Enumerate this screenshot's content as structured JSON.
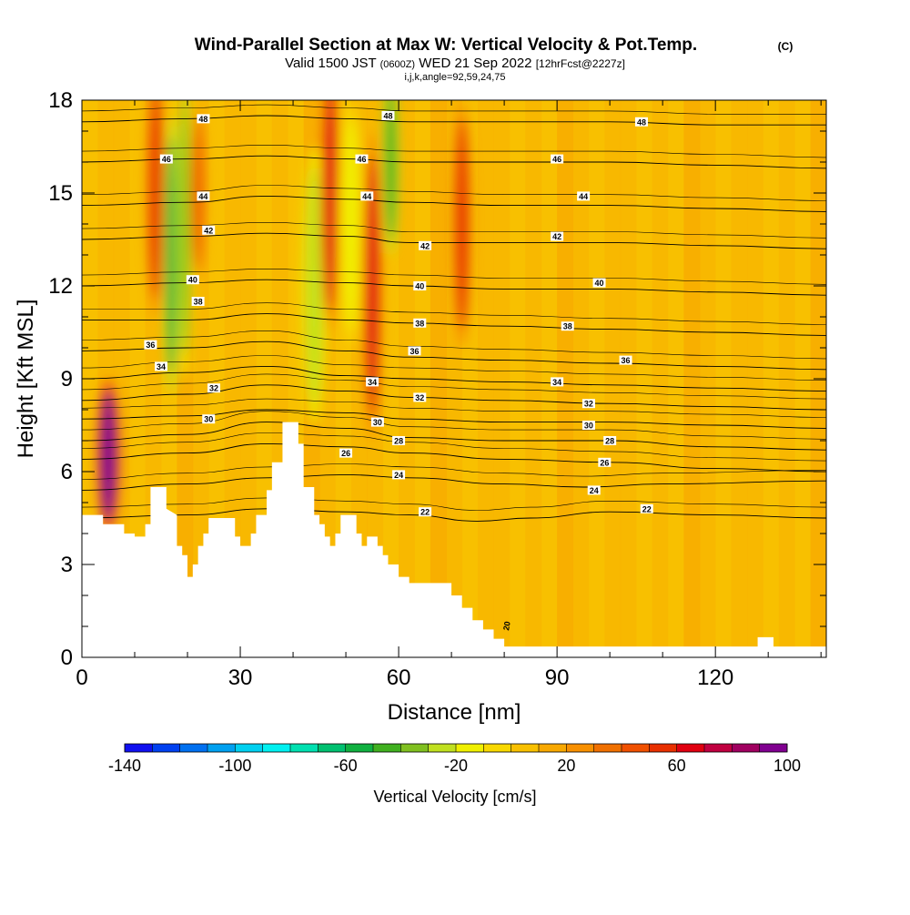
{
  "chart_data": {
    "type": "heatmap",
    "title": "Wind-Parallel Section at Max W: Vertical Velocity & Pot.Temp.",
    "title_mark": "(C)",
    "subtitle_main": "Valid 1500 JST",
    "subtitle_utc": "(0600Z)",
    "subtitle_date": "WED 21 Sep 2022",
    "subtitle_fcst": "[12hrFcst@2227z]",
    "subtitle_ijk": "i,j,k,angle=92,59,24,75",
    "xlabel": "Distance [nm]",
    "ylabel": "Height [Kft MSL]",
    "xlim": [
      0,
      141
    ],
    "ylim": [
      0,
      18
    ],
    "x_ticks": [
      0,
      30,
      60,
      90,
      120
    ],
    "y_ticks": [
      0,
      3,
      6,
      9,
      12,
      15,
      18
    ],
    "colorbar": {
      "label": "Vertical Velocity [cm/s]",
      "min": -140,
      "max": 100,
      "step": 10,
      "tick_labels": [
        -140,
        -100,
        -60,
        -20,
        20,
        60,
        100
      ],
      "colors": [
        "#1010f0",
        "#0040f0",
        "#0070f0",
        "#00a0f0",
        "#00d0f0",
        "#00f0f0",
        "#00e0b0",
        "#00c070",
        "#10b040",
        "#40b020",
        "#80c020",
        "#c0e020",
        "#f0f000",
        "#f8d800",
        "#f8c000",
        "#f8a800",
        "#f89000",
        "#f07000",
        "#f05000",
        "#e83000",
        "#e00010",
        "#c00040",
        "#a00060",
        "#800090"
      ]
    },
    "theta_contours": [
      {
        "value": 22,
        "label": "22",
        "points": [
          [
            0,
            4.5
          ],
          [
            20,
            4.6
          ],
          [
            35,
            4.8
          ],
          [
            50,
            4.7
          ],
          [
            62,
            4.6
          ],
          [
            75,
            4.4
          ],
          [
            85,
            4.5
          ],
          [
            100,
            4.7
          ],
          [
            120,
            4.6
          ],
          [
            141,
            4.5
          ]
        ],
        "labels_at": [
          [
            65,
            4.7
          ],
          [
            107,
            4.8
          ]
        ]
      },
      {
        "value": 24,
        "label": "24",
        "points": [
          [
            0,
            5.4
          ],
          [
            20,
            5.6
          ],
          [
            35,
            5.8
          ],
          [
            50,
            5.9
          ],
          [
            62,
            5.8
          ],
          [
            80,
            5.6
          ],
          [
            95,
            5.5
          ],
          [
            110,
            5.6
          ],
          [
            141,
            5.7
          ]
        ],
        "labels_at": [
          [
            60,
            5.9
          ],
          [
            97,
            5.4
          ]
        ]
      },
      {
        "value": 26,
        "label": "26",
        "points": [
          [
            0,
            6.4
          ],
          [
            20,
            6.6
          ],
          [
            35,
            6.9
          ],
          [
            50,
            6.8
          ],
          [
            62,
            6.6
          ],
          [
            80,
            6.4
          ],
          [
            100,
            6.3
          ],
          [
            120,
            6.1
          ],
          [
            141,
            6.0
          ]
        ],
        "labels_at": [
          [
            50,
            6.6
          ],
          [
            99,
            6.3
          ]
        ]
      },
      {
        "value": 28,
        "label": "28",
        "points": [
          [
            0,
            7.0
          ],
          [
            20,
            7.2
          ],
          [
            35,
            7.6
          ],
          [
            50,
            7.4
          ],
          [
            62,
            7.1
          ],
          [
            80,
            7.0
          ],
          [
            100,
            7.0
          ],
          [
            120,
            6.8
          ],
          [
            141,
            6.7
          ]
        ],
        "labels_at": [
          [
            60,
            7.0
          ],
          [
            100,
            7.0
          ]
        ]
      },
      {
        "value": 30,
        "label": "30",
        "points": [
          [
            0,
            7.7
          ],
          [
            20,
            7.8
          ],
          [
            35,
            8.0
          ],
          [
            50,
            7.9
          ],
          [
            62,
            7.7
          ],
          [
            80,
            7.6
          ],
          [
            100,
            7.6
          ],
          [
            120,
            7.5
          ],
          [
            141,
            7.4
          ]
        ],
        "labels_at": [
          [
            24,
            7.7
          ],
          [
            56,
            7.6
          ],
          [
            96,
            7.5
          ]
        ]
      },
      {
        "value": 32,
        "label": "32",
        "points": [
          [
            0,
            8.3
          ],
          [
            20,
            8.5
          ],
          [
            35,
            8.8
          ],
          [
            50,
            8.6
          ],
          [
            62,
            8.4
          ],
          [
            80,
            8.3
          ],
          [
            100,
            8.2
          ],
          [
            120,
            8.1
          ],
          [
            141,
            8.0
          ]
        ],
        "labels_at": [
          [
            25,
            8.7
          ],
          [
            64,
            8.4
          ],
          [
            96,
            8.2
          ]
        ]
      },
      {
        "value": 34,
        "label": "34",
        "points": [
          [
            0,
            9.0
          ],
          [
            20,
            9.2
          ],
          [
            35,
            9.4
          ],
          [
            50,
            9.1
          ],
          [
            62,
            9.0
          ],
          [
            80,
            8.9
          ],
          [
            100,
            8.8
          ],
          [
            120,
            8.7
          ],
          [
            141,
            8.6
          ]
        ],
        "labels_at": [
          [
            15,
            9.4
          ],
          [
            55,
            8.9
          ],
          [
            90,
            8.9
          ]
        ]
      },
      {
        "value": 36,
        "label": "36",
        "points": [
          [
            0,
            9.9
          ],
          [
            20,
            10.0
          ],
          [
            35,
            10.2
          ],
          [
            50,
            9.9
          ],
          [
            62,
            9.7
          ],
          [
            80,
            9.6
          ],
          [
            100,
            9.5
          ],
          [
            120,
            9.4
          ],
          [
            141,
            9.3
          ]
        ],
        "labels_at": [
          [
            13,
            10.1
          ],
          [
            63,
            9.9
          ],
          [
            103,
            9.6
          ]
        ]
      },
      {
        "value": 38,
        "label": "38",
        "points": [
          [
            0,
            10.9
          ],
          [
            20,
            10.9
          ],
          [
            35,
            11.1
          ],
          [
            50,
            10.9
          ],
          [
            62,
            10.8
          ],
          [
            80,
            10.7
          ],
          [
            100,
            10.6
          ],
          [
            120,
            10.5
          ],
          [
            141,
            10.4
          ]
        ],
        "labels_at": [
          [
            22,
            11.5
          ],
          [
            64,
            10.8
          ],
          [
            92,
            10.7
          ]
        ]
      },
      {
        "value": 40,
        "label": "40",
        "points": [
          [
            0,
            12.0
          ],
          [
            20,
            12.1
          ],
          [
            35,
            12.2
          ],
          [
            50,
            12.1
          ],
          [
            62,
            12.0
          ],
          [
            80,
            11.9
          ],
          [
            100,
            11.9
          ],
          [
            120,
            11.8
          ],
          [
            141,
            11.7
          ]
        ],
        "labels_at": [
          [
            21,
            12.2
          ],
          [
            64,
            12.0
          ],
          [
            98,
            12.1
          ]
        ]
      },
      {
        "value": 42,
        "label": "42",
        "points": [
          [
            0,
            13.5
          ],
          [
            20,
            13.6
          ],
          [
            35,
            13.7
          ],
          [
            50,
            13.6
          ],
          [
            62,
            13.4
          ],
          [
            80,
            13.4
          ],
          [
            100,
            13.4
          ],
          [
            120,
            13.3
          ],
          [
            141,
            13.2
          ]
        ],
        "labels_at": [
          [
            24,
            13.8
          ],
          [
            65,
            13.3
          ],
          [
            90,
            13.6
          ]
        ]
      },
      {
        "value": 44,
        "label": "44",
        "points": [
          [
            0,
            14.6
          ],
          [
            20,
            14.7
          ],
          [
            35,
            14.9
          ],
          [
            50,
            14.8
          ],
          [
            62,
            14.7
          ],
          [
            80,
            14.6
          ],
          [
            100,
            14.6
          ],
          [
            120,
            14.5
          ],
          [
            141,
            14.4
          ]
        ],
        "labels_at": [
          [
            23,
            14.9
          ],
          [
            54,
            14.9
          ],
          [
            95,
            14.9
          ]
        ]
      },
      {
        "value": 46,
        "label": "46",
        "points": [
          [
            0,
            16.0
          ],
          [
            20,
            16.1
          ],
          [
            35,
            16.2
          ],
          [
            50,
            16.1
          ],
          [
            62,
            16.0
          ],
          [
            80,
            16.0
          ],
          [
            100,
            16.0
          ],
          [
            120,
            15.9
          ],
          [
            141,
            15.8
          ]
        ],
        "labels_at": [
          [
            16,
            16.1
          ],
          [
            53,
            16.1
          ],
          [
            90,
            16.1
          ]
        ]
      },
      {
        "value": 48,
        "label": "48",
        "points": [
          [
            0,
            17.3
          ],
          [
            20,
            17.4
          ],
          [
            35,
            17.5
          ],
          [
            50,
            17.4
          ],
          [
            62,
            17.3
          ],
          [
            80,
            17.3
          ],
          [
            100,
            17.3
          ],
          [
            120,
            17.2
          ],
          [
            141,
            17.2
          ]
        ],
        "labels_at": [
          [
            23,
            17.4
          ],
          [
            58,
            17.5
          ],
          [
            106,
            17.3
          ]
        ]
      }
    ],
    "terrain": [
      [
        0,
        4.6
      ],
      [
        4,
        4.6
      ],
      [
        4,
        4.3
      ],
      [
        8,
        4.3
      ],
      [
        8,
        4.0
      ],
      [
        10,
        4.0
      ],
      [
        10,
        3.9
      ],
      [
        12,
        3.9
      ],
      [
        12,
        4.3
      ],
      [
        13,
        4.3
      ],
      [
        13,
        5.5
      ],
      [
        16,
        5.5
      ],
      [
        16,
        4.8
      ],
      [
        18,
        4.6
      ],
      [
        18,
        3.6
      ],
      [
        19,
        3.6
      ],
      [
        19,
        3.3
      ],
      [
        20,
        3.3
      ],
      [
        20,
        2.6
      ],
      [
        21,
        2.6
      ],
      [
        21,
        3.0
      ],
      [
        22,
        3.0
      ],
      [
        22,
        3.6
      ],
      [
        23,
        3.6
      ],
      [
        23,
        4.0
      ],
      [
        24,
        4.0
      ],
      [
        24,
        4.5
      ],
      [
        29,
        4.5
      ],
      [
        29,
        3.9
      ],
      [
        30,
        3.9
      ],
      [
        30,
        3.6
      ],
      [
        32,
        3.6
      ],
      [
        32,
        4.0
      ],
      [
        33,
        4.0
      ],
      [
        33,
        4.6
      ],
      [
        35,
        4.6
      ],
      [
        35,
        5.4
      ],
      [
        36,
        5.4
      ],
      [
        36,
        6.3
      ],
      [
        38,
        6.3
      ],
      [
        38,
        7.6
      ],
      [
        41,
        7.6
      ],
      [
        41,
        6.9
      ],
      [
        42,
        6.9
      ],
      [
        42,
        5.5
      ],
      [
        44,
        5.5
      ],
      [
        44,
        4.6
      ],
      [
        45,
        4.6
      ],
      [
        45,
        4.3
      ],
      [
        46,
        4.3
      ],
      [
        46,
        3.9
      ],
      [
        47,
        3.9
      ],
      [
        47,
        3.6
      ],
      [
        48,
        3.6
      ],
      [
        48,
        4.0
      ],
      [
        49,
        4.0
      ],
      [
        49,
        4.6
      ],
      [
        52,
        4.6
      ],
      [
        52,
        4.0
      ],
      [
        53,
        4.0
      ],
      [
        53,
        3.6
      ],
      [
        54,
        3.6
      ],
      [
        54,
        3.9
      ],
      [
        56,
        3.9
      ],
      [
        56,
        3.6
      ],
      [
        57,
        3.6
      ],
      [
        57,
        3.3
      ],
      [
        58,
        3.3
      ],
      [
        58,
        3.0
      ],
      [
        60,
        3.0
      ],
      [
        60,
        2.6
      ],
      [
        62,
        2.6
      ],
      [
        62,
        2.4
      ],
      [
        70,
        2.4
      ],
      [
        70,
        2.0
      ],
      [
        72,
        2.0
      ],
      [
        72,
        1.6
      ],
      [
        74,
        1.6
      ],
      [
        74,
        1.2
      ],
      [
        76,
        1.2
      ],
      [
        76,
        0.9
      ],
      [
        78,
        0.9
      ],
      [
        78,
        0.6
      ],
      [
        80,
        0.6
      ],
      [
        80,
        0.35
      ],
      [
        128,
        0.35
      ],
      [
        128,
        0.65
      ],
      [
        131,
        0.65
      ],
      [
        131,
        0.35
      ],
      [
        141,
        0.35
      ]
    ],
    "velocity_features": [
      {
        "x": 5,
        "y": 6.5,
        "value": 95,
        "width": 3,
        "height": 5
      },
      {
        "x": 14,
        "y": 15,
        "value": 50,
        "width": 2.5,
        "height": 8
      },
      {
        "x": 17,
        "y": 13,
        "value": -60,
        "width": 2,
        "height": 9
      },
      {
        "x": 19.5,
        "y": 14,
        "value": -40,
        "width": 2,
        "height": 10
      },
      {
        "x": 22,
        "y": 15,
        "value": 40,
        "width": 2,
        "height": 6
      },
      {
        "x": 44,
        "y": 12,
        "value": -30,
        "width": 3,
        "height": 9
      },
      {
        "x": 47,
        "y": 15,
        "value": 60,
        "width": 2.5,
        "height": 9
      },
      {
        "x": 51,
        "y": 14,
        "value": -20,
        "width": 3,
        "height": 8
      },
      {
        "x": 55,
        "y": 12,
        "value": 60,
        "width": 2.5,
        "height": 10
      },
      {
        "x": 58.5,
        "y": 16,
        "value": -50,
        "width": 2,
        "height": 6
      },
      {
        "x": 72,
        "y": 14,
        "value": 50,
        "width": 2.5,
        "height": 8
      }
    ],
    "low_contour_labels": [
      {
        "x": 81,
        "y": 1.0,
        "label": "20"
      }
    ]
  }
}
